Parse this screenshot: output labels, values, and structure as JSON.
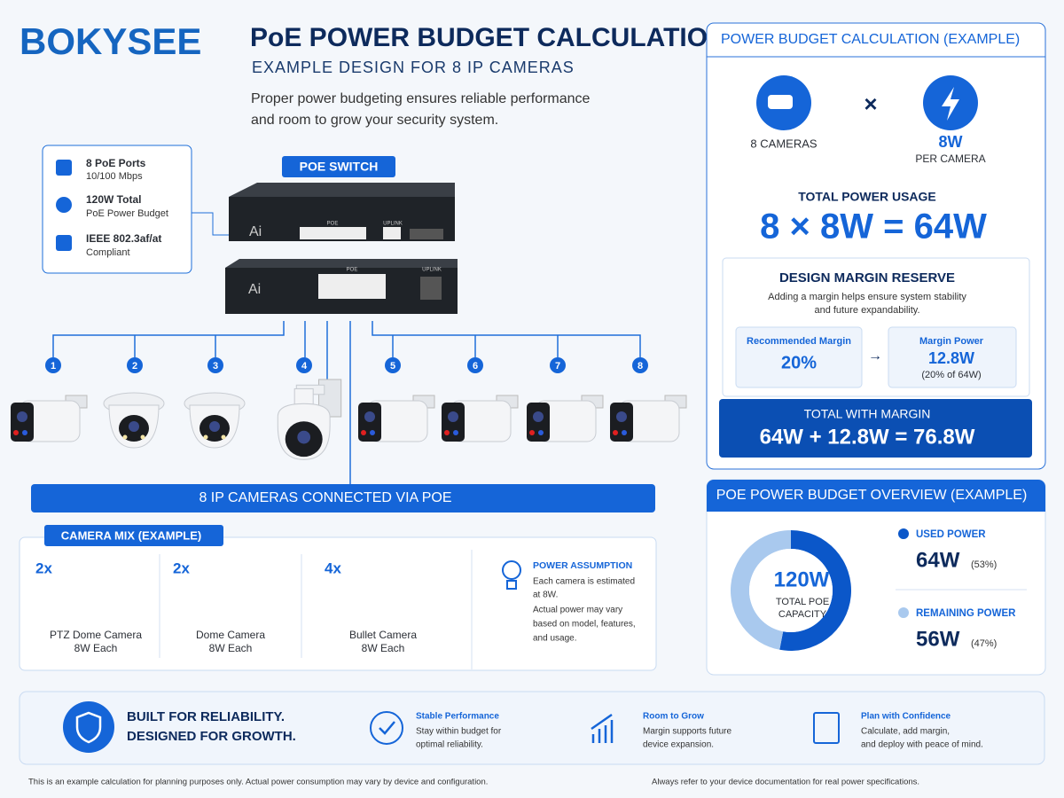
{
  "header": {
    "logo": "BOKYSEE",
    "title": "PoE POWER BUDGET CALCULATION",
    "subtitle": "EXAMPLE DESIGN FOR 8 IP CAMERAS",
    "intro_lines": [
      "Proper power budgeting ensures reliable performance",
      "and room to grow your security system."
    ]
  },
  "switch_specs": [
    {
      "title": "8 PoE Ports",
      "detail": "10/100 Mbps"
    },
    {
      "title": "120W Total",
      "detail": "PoE Power Budget"
    },
    {
      "title": "IEEE 802.3af/at",
      "detail": "Compliant"
    }
  ],
  "switch_label": "POE SWITCH",
  "switch_texts": {
    "brand": "Ai",
    "poe": "POE",
    "uplink": "UPLINK"
  },
  "port_numbers": [
    "1",
    "2",
    "3",
    "4",
    "5",
    "6",
    "7",
    "8"
  ],
  "cameras_banner": "8 IP CAMERAS CONNECTED VIA POE",
  "camera_mix": {
    "title": "CAMERA MIX (EXAMPLE)",
    "items": [
      {
        "count": "2x",
        "name": "PTZ Dome Camera",
        "power": "8W Each"
      },
      {
        "count": "2x",
        "name": "Dome Camera",
        "power": "8W Each"
      },
      {
        "count": "4x",
        "name": "Bullet Camera",
        "power": "8W Each"
      }
    ]
  },
  "power_assumption": {
    "title": "POWER ASSUMPTION",
    "lines": [
      "Each camera is estimated",
      "at 8W.",
      "Actual power may vary",
      "based on model, features,",
      "and usage."
    ]
  },
  "calculation": {
    "title": "POWER BUDGET CALCULATION (EXAMPLE)",
    "cameras": "8 CAMERAS",
    "times": "×",
    "per_camera_value": "8W",
    "per_camera_label": "PER CAMERA",
    "total_label": "TOTAL POWER USAGE",
    "total_formula": "8 × 8W = 64W",
    "margin": {
      "title": "DESIGN MARGIN RESERVE",
      "lines": [
        "Adding a margin helps ensure system stability",
        "and future expandability."
      ],
      "recommended_label": "Recommended Margin",
      "recommended_value": "20%",
      "arrow": "→",
      "power_label": "Margin Power",
      "power_value": "12.8W",
      "power_note": "(20% of 64W)"
    },
    "with_margin_label": "TOTAL WITH MARGIN",
    "with_margin_formula": "64W + 12.8W = 76.8W"
  },
  "overview": {
    "title": "POE POWER BUDGET OVERVIEW (EXAMPLE)",
    "center_value": "120W",
    "center_label_lines": [
      "TOTAL POE",
      "CAPACITY"
    ],
    "segments": [
      {
        "name": "USED POWER",
        "amount": "64W",
        "value": 53,
        "value_label": "(53%)",
        "color": "#0b57c9"
      },
      {
        "name": "REMAINING POWER",
        "amount": "56W",
        "value": 47,
        "value_label": "(47%)",
        "color": "#a9c9ee"
      }
    ]
  },
  "footer_banner": {
    "headline_lines": [
      "BUILT FOR RELIABILITY.",
      "DESIGNED FOR GROWTH."
    ],
    "features": [
      {
        "title": "Stable Performance",
        "lines": [
          "Stay within budget for",
          "optimal reliability."
        ]
      },
      {
        "title": "Room to Grow",
        "lines": [
          "Margin supports future",
          "device expansion."
        ]
      },
      {
        "title": "Plan with Confidence",
        "lines": [
          "Calculate, add margin,",
          "and deploy with peace of mind."
        ]
      }
    ]
  },
  "disclaimers": [
    "This is an example calculation for planning purposes only.  Actual power consumption may vary by device and configuration.",
    "Always refer to your device documentation for real power specifications."
  ]
}
